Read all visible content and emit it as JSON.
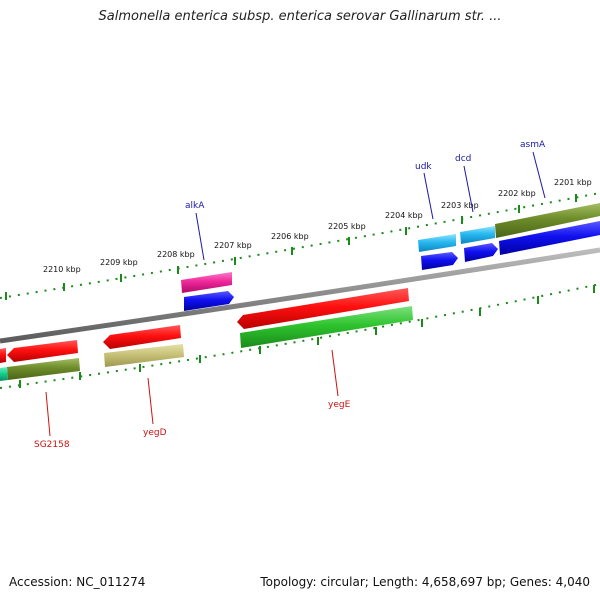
{
  "title": "Salmonella enterica subsp. enterica serovar Gallinarum str. ...",
  "accession": "Accession: NC_011274",
  "summary": "Topology: circular; Length: 4,658,697 bp; Genes: 4,040",
  "colors": {
    "backbone": "#8a8a8a",
    "ticks": "#1a8a1a",
    "label_top": "#1a1aa8",
    "label_bottom": "#cc1111"
  },
  "kbp_labels": [
    "2201 kbp",
    "2202 kbp",
    "2203 kbp",
    "2204 kbp",
    "2205 kbp",
    "2206 kbp",
    "2207 kbp",
    "2208 kbp",
    "2209 kbp",
    "2210 kbp"
  ],
  "gene_labels": {
    "asmA": "asmA",
    "dcd": "dcd",
    "udk": "udk",
    "alkA": "alkA",
    "yegE": "yegE",
    "yegD": "yegD",
    "SG2158": "SG2158"
  }
}
